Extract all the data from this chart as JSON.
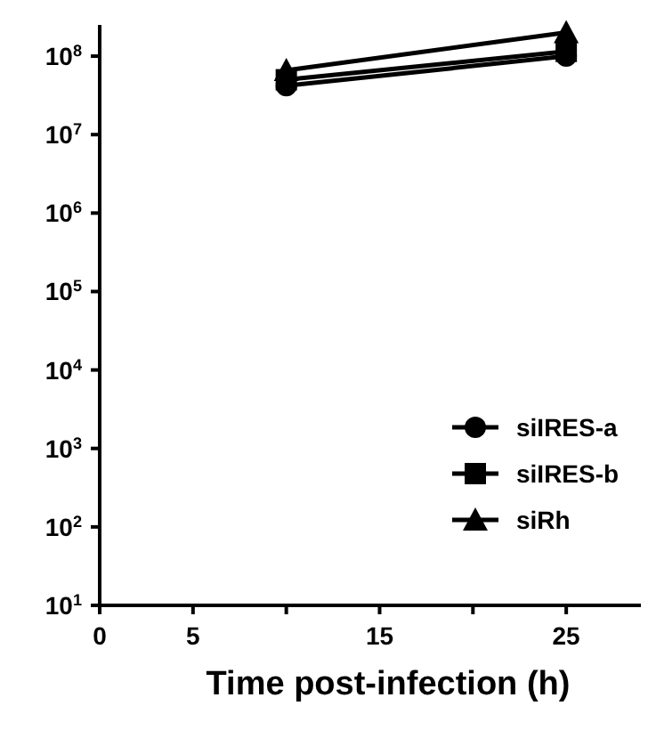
{
  "chart_data": {
    "type": "line",
    "xlabel": "Time post-infection (h)",
    "x": [
      10,
      25
    ],
    "series": [
      {
        "name": "siIRES-a",
        "color": "#000000",
        "marker": "circle",
        "values": [
          42000000,
          100000000
        ]
      },
      {
        "name": "siIRES-b",
        "color": "#000000",
        "marker": "square",
        "values": [
          50000000,
          115000000
        ]
      },
      {
        "name": "siRh",
        "color": "#000000",
        "marker": "triangle",
        "values": [
          66000000,
          200000000
        ]
      }
    ],
    "log": "y",
    "xlim": [
      0,
      29
    ],
    "xticks": [
      0,
      5,
      {
        "value": 10,
        "label": null
      },
      15,
      {
        "value": 20,
        "label": null
      },
      25
    ],
    "ylim": [
      10,
      250000000
    ],
    "yticks": [
      {
        "value": 10,
        "label": "10$^{1}$"
      },
      {
        "value": 100,
        "label": "10$^{2}$"
      },
      {
        "value": 1000,
        "label": "10$^{3}$"
      },
      {
        "value": 10000,
        "label": "10$^{4}$"
      },
      {
        "value": 100000,
        "label": "10$^{5}$"
      },
      {
        "value": 1000000,
        "label": "10$^{6}$"
      },
      {
        "value": 10000000,
        "label": "10$^{7}$"
      },
      {
        "value": 100000000,
        "label": "10$^{8}$"
      }
    ],
    "grid": false,
    "legend": "right",
    "line_style": "solid"
  }
}
